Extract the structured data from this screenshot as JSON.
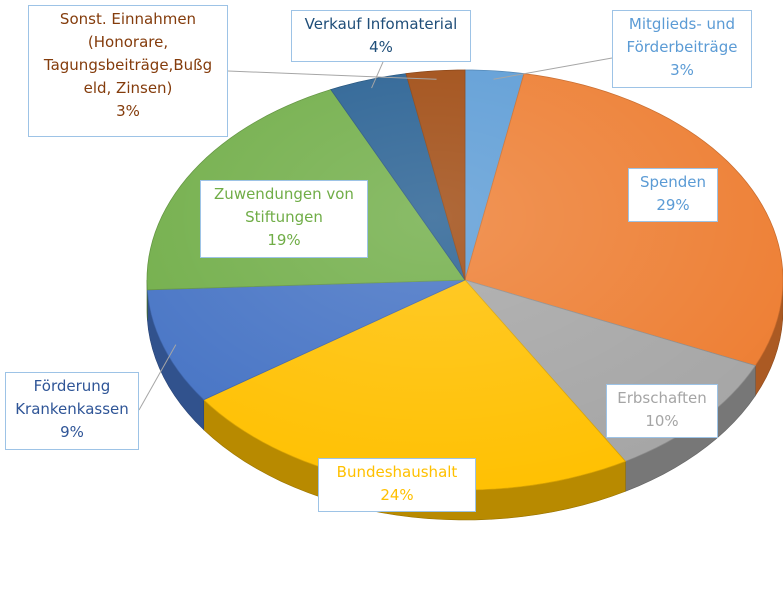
{
  "chart_data": {
    "type": "pie",
    "variant": "3d",
    "slices": [
      {
        "label": "Mitglieds- und\nFörderbeiträge",
        "value": 3,
        "percent_label": "3%",
        "color": "#5b9bd5",
        "text_color": "#5b9bd5"
      },
      {
        "label": "Spenden",
        "value": 29,
        "percent_label": "29%",
        "color": "#ed7d31",
        "text_color": "#5b9bd5"
      },
      {
        "label": "Erbschaften",
        "value": 10,
        "percent_label": "10%",
        "color": "#a5a5a5",
        "text_color": "#a5a5a5"
      },
      {
        "label": "Bundeshaushalt",
        "value": 24,
        "percent_label": "24%",
        "color": "#ffc000",
        "text_color": "#ffc000"
      },
      {
        "label": "Förderung\nKrankenkassen",
        "value": 9,
        "percent_label": "9%",
        "color": "#4472c4",
        "text_color": "#2f5597"
      },
      {
        "label": "Zuwendungen von\nStiftungen",
        "value": 19,
        "percent_label": "19%",
        "color": "#70ad47",
        "text_color": "#70ad47"
      },
      {
        "label": "Verkauf Infomaterial",
        "value": 4,
        "percent_label": "4%",
        "color": "#255e91",
        "text_color": "#1f4e79"
      },
      {
        "label": "Sonst. Einnahmen\n(Honorare,\nTagungsbeiträge,Bußg\neld, Zinsen)",
        "value": 3,
        "percent_label": "3%",
        "color": "#9e480e",
        "text_color": "#843c0c"
      }
    ],
    "title": "",
    "legend": "none",
    "label_border_color": "#9dc3e6"
  }
}
